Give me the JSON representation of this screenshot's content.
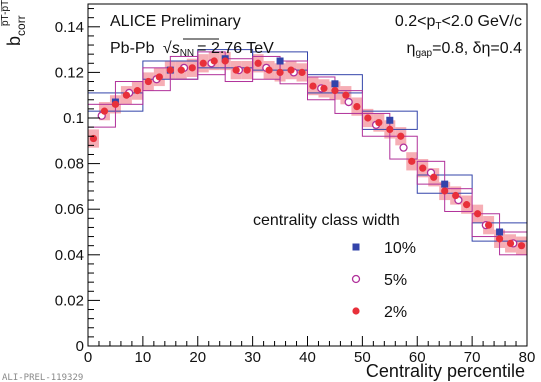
{
  "chart_data": {
    "type": "scatter",
    "title": "",
    "xlabel": "Centrality percentile",
    "ylabel": "b",
    "ylabel_sub": "corr",
    "ylabel_sup": "p̅T-p̅T",
    "xlim": [
      0,
      80
    ],
    "ylim": [
      0,
      0.15
    ],
    "xticks": [
      "0",
      "10",
      "20",
      "30",
      "40",
      "50",
      "60",
      "70",
      "80"
    ],
    "yticks": [
      "0",
      "0.02",
      "0.04",
      "0.06",
      "0.08",
      "0.1",
      "0.12",
      "0.14"
    ],
    "grid": false,
    "annotations": {
      "experiment": "ALICE Preliminary",
      "system": "Pb-Pb",
      "energy_sqrt": "s",
      "energy_sub": "NN",
      "energy_value": "= 2.76 TeV",
      "pt_low": "0.2<p",
      "pt_sub": "T",
      "pt_high": "<2.0 GeV/c",
      "eta_prefix": "η",
      "eta_sub": "gap",
      "eta_value": "=0.8, δη=0.4",
      "footer": "ALI-PREL-119329"
    },
    "legend": {
      "title": "centrality class width",
      "placement": "bottom-right"
    },
    "series": [
      {
        "name": "10%",
        "marker": "square",
        "color": "#3344aa",
        "xerr": 5,
        "x": [
          5,
          15,
          25,
          35,
          45,
          55,
          65,
          75
        ],
        "y": [
          0.107,
          0.121,
          0.126,
          0.125,
          0.115,
          0.099,
          0.071,
          0.05
        ],
        "sys": [
          0.004,
          0.004,
          0.004,
          0.004,
          0.004,
          0.004,
          0.004,
          0.004
        ]
      },
      {
        "name": "5%",
        "marker": "open-circle",
        "color": "#b0309a",
        "xerr": 2.5,
        "x": [
          2.5,
          7.5,
          12.5,
          17.5,
          22.5,
          27.5,
          32.5,
          37.5,
          42.5,
          47.5,
          52.5,
          57.5,
          62.5,
          67.5,
          72.5,
          77.5
        ],
        "y": [
          0.101,
          0.111,
          0.117,
          0.122,
          0.124,
          0.121,
          0.122,
          0.12,
          0.113,
          0.107,
          0.097,
          0.087,
          0.076,
          0.064,
          0.053,
          0.045
        ],
        "sys": [
          0.005,
          0.005,
          0.005,
          0.005,
          0.005,
          0.005,
          0.005,
          0.005,
          0.005,
          0.005,
          0.005,
          0.005,
          0.005,
          0.005,
          0.005,
          0.005
        ]
      },
      {
        "name": "2%",
        "marker": "filled-circle",
        "color": "#e8303a",
        "band": "#f5a0a8",
        "xerr": 1,
        "x": [
          1,
          3,
          5,
          7,
          9,
          11,
          13,
          15,
          17,
          19,
          21,
          23,
          25,
          27,
          29,
          31,
          33,
          35,
          37,
          39,
          41,
          43,
          45,
          47,
          49,
          51,
          53,
          55,
          57,
          59,
          61,
          63,
          65,
          67,
          69,
          71,
          73,
          75,
          77,
          79
        ],
        "y": [
          0.091,
          0.103,
          0.106,
          0.11,
          0.112,
          0.116,
          0.118,
          0.121,
          0.121,
          0.122,
          0.124,
          0.125,
          0.125,
          0.121,
          0.121,
          0.124,
          0.121,
          0.12,
          0.121,
          0.12,
          0.114,
          0.113,
          0.112,
          0.11,
          0.105,
          0.1,
          0.098,
          0.095,
          0.092,
          0.081,
          0.078,
          0.074,
          0.068,
          0.066,
          0.062,
          0.058,
          0.053,
          0.047,
          0.045,
          0.044
        ],
        "sys": [
          0.004,
          0.004,
          0.004,
          0.004,
          0.004,
          0.004,
          0.004,
          0.004,
          0.004,
          0.004,
          0.004,
          0.004,
          0.004,
          0.004,
          0.004,
          0.004,
          0.004,
          0.004,
          0.004,
          0.004,
          0.004,
          0.004,
          0.004,
          0.004,
          0.004,
          0.004,
          0.004,
          0.004,
          0.004,
          0.004,
          0.004,
          0.004,
          0.004,
          0.004,
          0.004,
          0.004,
          0.004,
          0.004,
          0.004,
          0.004
        ]
      }
    ]
  }
}
